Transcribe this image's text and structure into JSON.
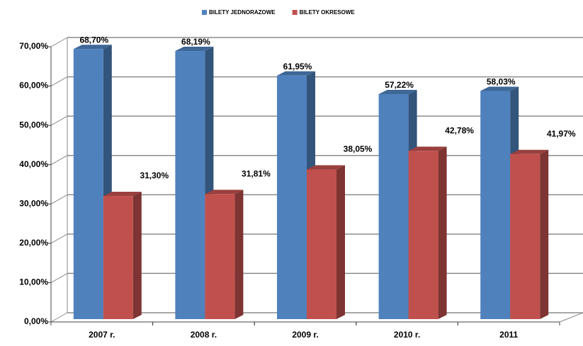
{
  "chart_data": {
    "type": "bar3d",
    "categories": [
      "2007 r.",
      "2008 r.",
      "2009 r.",
      "2010 r.",
      "2011"
    ],
    "series": [
      {
        "name": "BILETY JEDNORAZOWE",
        "color": "#4f81bd",
        "values": [
          68.7,
          68.19,
          61.95,
          57.22,
          58.03
        ],
        "value_labels": [
          "68,70%",
          "68,19%",
          "61,95%",
          "57,22%",
          "58,03%"
        ]
      },
      {
        "name": "BILETY OKRESOWE",
        "color": "#c0504d",
        "values": [
          31.3,
          31.81,
          38.05,
          42.78,
          41.97
        ],
        "value_labels": [
          "31,30%",
          "31,81%",
          "38,05%",
          "42,78%",
          "41,97%"
        ]
      }
    ],
    "ylim": [
      0,
      70
    ],
    "yticks": [
      {
        "value": 0,
        "label": "0,00%"
      },
      {
        "value": 10,
        "label": "10,00%"
      },
      {
        "value": 20,
        "label": "20,00%"
      },
      {
        "value": 30,
        "label": "30,00%"
      },
      {
        "value": 40,
        "label": "40,00%"
      },
      {
        "value": 50,
        "label": "50,00%"
      },
      {
        "value": 60,
        "label": "60,00%"
      },
      {
        "value": 70,
        "label": "70,00%"
      }
    ],
    "grid": true,
    "legend": "top"
  }
}
